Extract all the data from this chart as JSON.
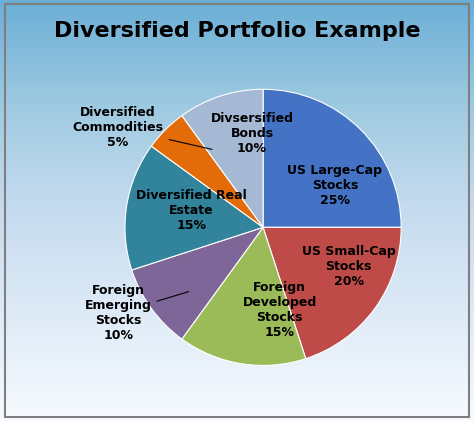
{
  "title": "Diversified Portfolio Example",
  "slices": [
    {
      "label": "US Large-Cap\nStocks\n25%",
      "value": 25,
      "color": "#4472C4"
    },
    {
      "label": "US Small-Cap\nStocks\n20%",
      "value": 20,
      "color": "#BE4B48"
    },
    {
      "label": "Foreign\nDeveloped\nStocks\n15%",
      "value": 15,
      "color": "#9BBB59"
    },
    {
      "label": "Foreign\nEmerging\nStocks\n10%",
      "value": 10,
      "color": "#7E6699"
    },
    {
      "label": "Diversified Real\nEstate\n15%",
      "value": 15,
      "color": "#31849B"
    },
    {
      "label": "Diversified\nCommodities\n5%",
      "value": 5,
      "color": "#E36C09"
    },
    {
      "label": "Divsersified\nBonds\n10%",
      "value": 10,
      "color": "#A5B9D5"
    }
  ],
  "bg_color": "#c5d9f1",
  "title_fontsize": 16,
  "label_fontsize": 9,
  "startangle": 90
}
